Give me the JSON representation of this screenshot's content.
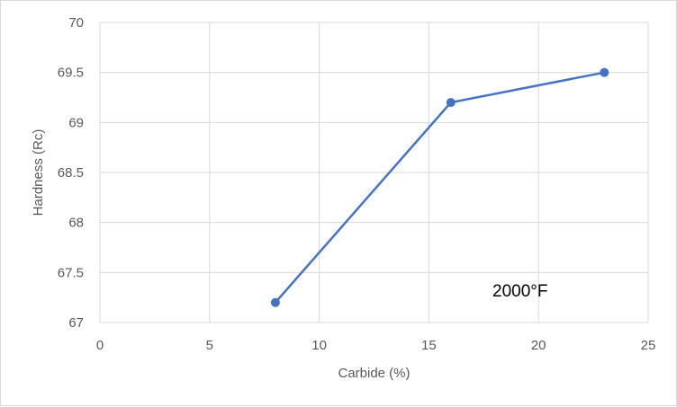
{
  "chart_data": {
    "type": "line",
    "title": "",
    "xlabel": "Carbide (%)",
    "ylabel": "Hardness (Rc)",
    "xlim": [
      0,
      25
    ],
    "ylim": [
      67,
      70
    ],
    "xticks": [
      "0",
      "5",
      "10",
      "15",
      "20",
      "25"
    ],
    "yticks": [
      "67",
      "67.5",
      "68",
      "68.5",
      "69",
      "69.5",
      "70"
    ],
    "grid": true,
    "legend": "none",
    "series": [
      {
        "x": [
          8,
          16,
          23
        ],
        "y": [
          67.2,
          69.2,
          69.5
        ],
        "color": "#4472c4",
        "marker": "circle"
      }
    ],
    "annotations": [
      {
        "text": "2000°F",
        "x": 17.9,
        "y": 67.26
      }
    ]
  }
}
